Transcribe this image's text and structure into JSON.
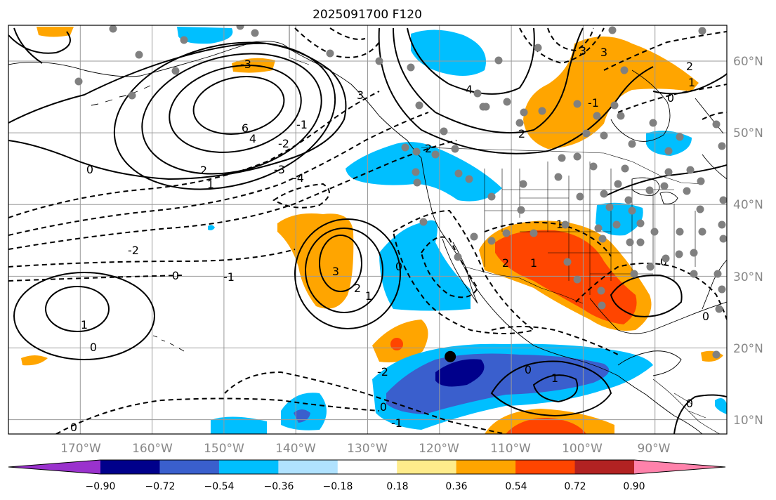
{
  "title": "2025091700 F120",
  "map": {
    "lon_range": [
      -180,
      -80
    ],
    "lat_range": [
      8,
      65
    ],
    "lon_ticks": [
      "170°W",
      "160°W",
      "150°W",
      "140°W",
      "130°W",
      "120°W",
      "110°W",
      "100°W",
      "90°W"
    ],
    "lat_ticks": [
      "60°N",
      "50°N",
      "40°N",
      "30°N",
      "20°N",
      "10°N"
    ],
    "grid": true,
    "marker_label_lon": -118.5,
    "marker_label_lat": 18.8
  },
  "colorbar": {
    "tick_labels": [
      "−0.90",
      "−0.72",
      "−0.54",
      "−0.36",
      "−0.18",
      "0.18",
      "0.36",
      "0.54",
      "0.72",
      "0.90"
    ],
    "colors": [
      "#9a32cd",
      "#00008b",
      "#3a5fcd",
      "#00bfff",
      "#b0e2ff",
      "#ffffff",
      "#ffec8b",
      "#ffa500",
      "#ff4500",
      "#b22222",
      "#ff82ab"
    ]
  },
  "contour_labels": [
    "6",
    "4",
    "2",
    "1",
    "0",
    "-1",
    "-2",
    "-3",
    "-4",
    "3",
    "2",
    "1",
    "0",
    "-1",
    "-2",
    "-3",
    "3",
    "2",
    "1",
    "0",
    "4",
    "3",
    "2",
    "1",
    "0",
    "-1",
    "2",
    "1",
    "0",
    "1",
    "0",
    "-1",
    "1",
    "0",
    "0",
    "0",
    "0",
    "0",
    "2",
    "3",
    "-2"
  ]
}
